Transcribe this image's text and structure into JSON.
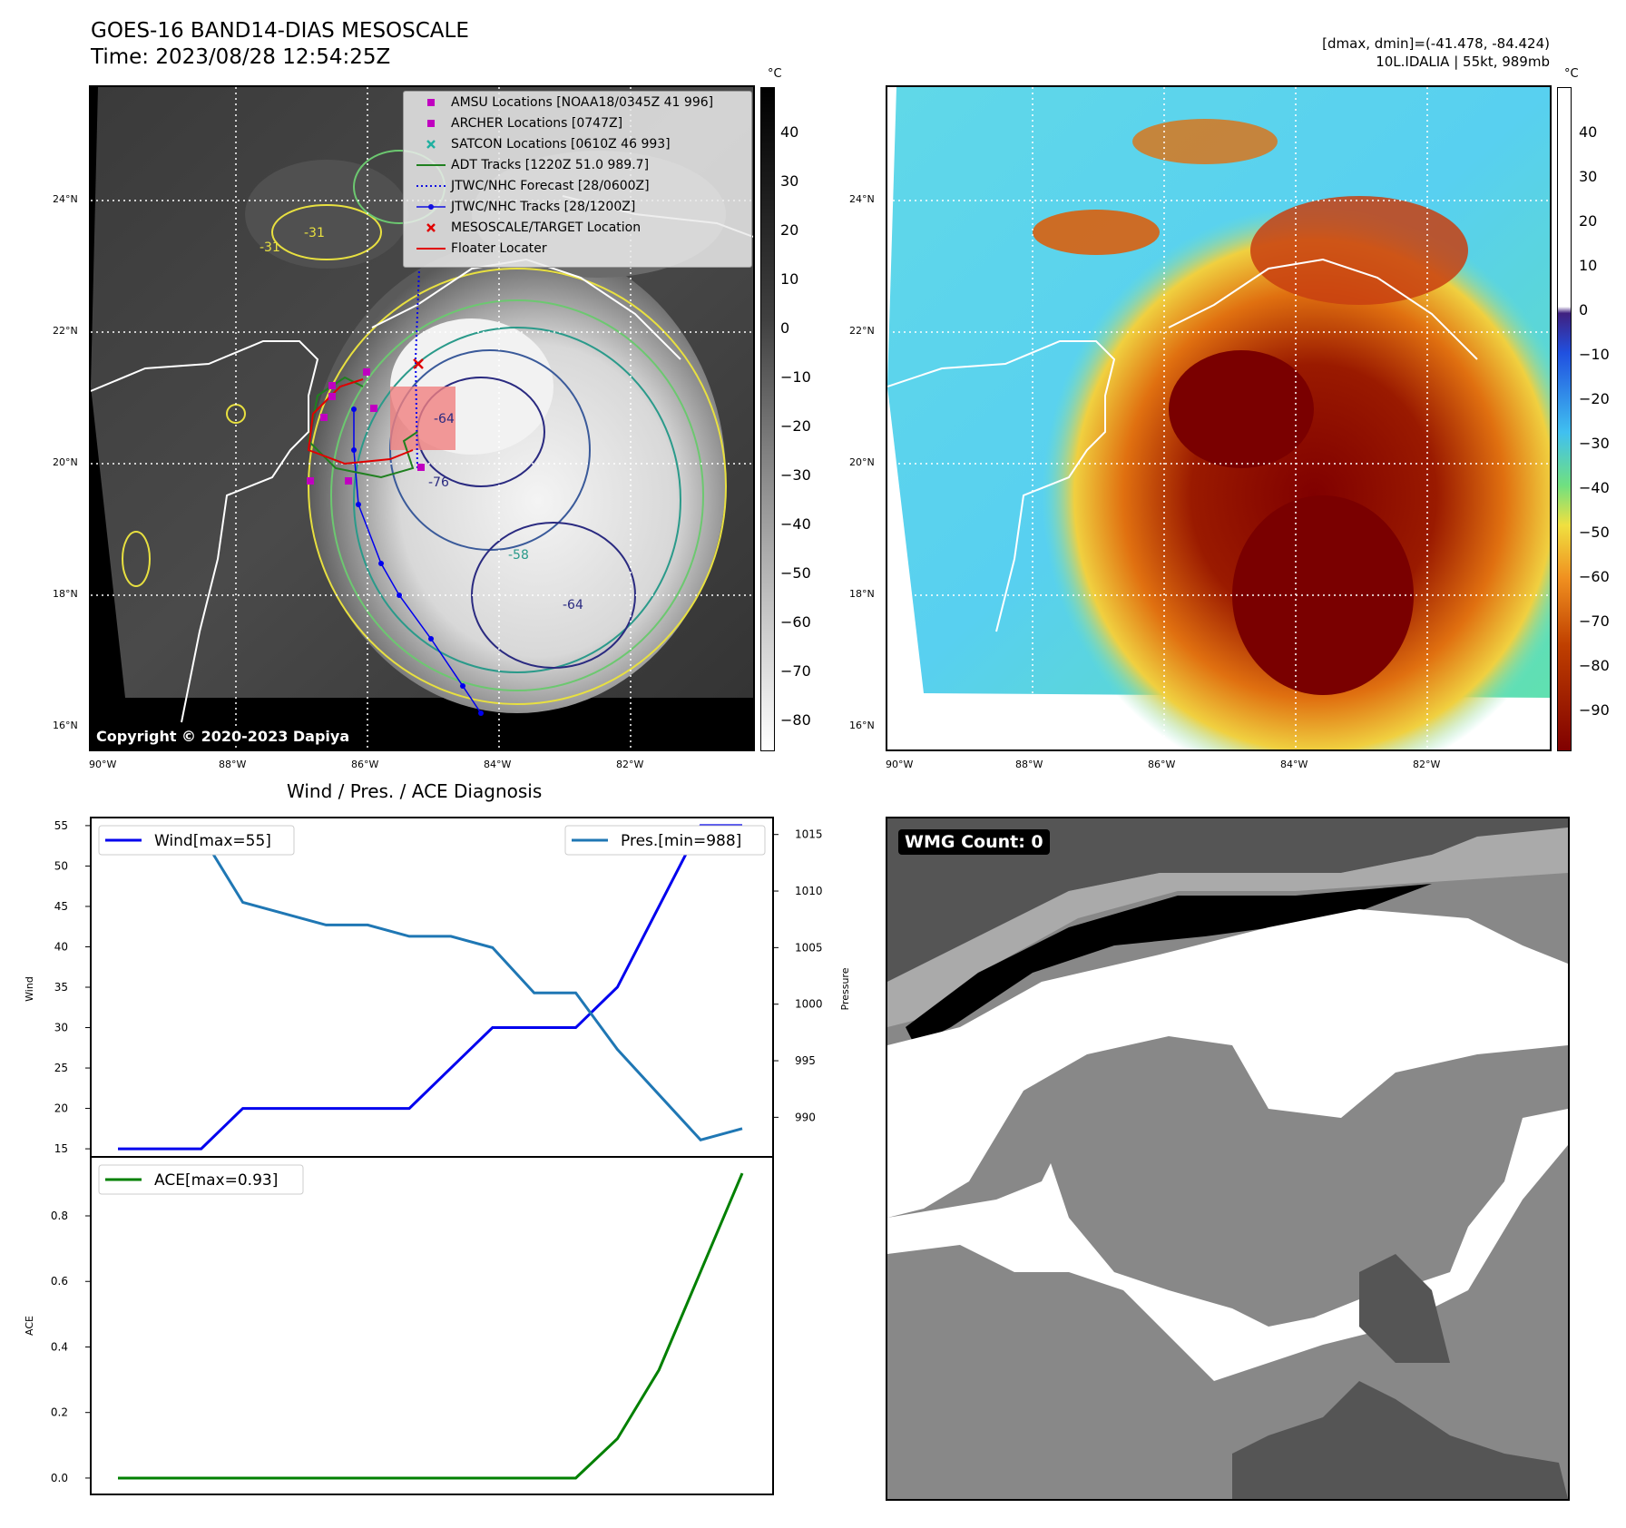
{
  "header": {
    "title_line1": "GOES-16 BAND14-DIAS MESOSCALE",
    "title_line2": "Time: 2023/08/28 12:54:25Z",
    "right_line1": "[dmax, dmin]=(-41.478, -84.424)",
    "right_line2": "10L.IDALIA | 55kt, 989mb"
  },
  "map_axes": {
    "lon_labels": [
      "90°W",
      "88°W",
      "86°W",
      "84°W",
      "82°W"
    ],
    "lat_labels": [
      "24°N",
      "22°N",
      "20°N",
      "18°N",
      "16°N"
    ]
  },
  "colorbar_left": {
    "unit": "°C",
    "ticks": [
      "40",
      "30",
      "20",
      "10",
      "0",
      "−10",
      "−20",
      "−30",
      "−40",
      "−50",
      "−60",
      "−70",
      "−80"
    ]
  },
  "colorbar_right": {
    "unit": "°C",
    "ticks": [
      "40",
      "30",
      "20",
      "10",
      "0",
      "−10",
      "−20",
      "−30",
      "−40",
      "−50",
      "−60",
      "−70",
      "−80",
      "−90"
    ]
  },
  "legend": {
    "items": [
      {
        "label": "AMSU Locations [NOAA18/0345Z 41 996]",
        "symbol": "square",
        "color": "#c000c0"
      },
      {
        "label": "ARCHER Locations [0747Z]",
        "symbol": "square",
        "color": "#c000c0"
      },
      {
        "label": "SATCON Locations [0610Z 46 993]",
        "symbol": "x",
        "color": "#20b0a0"
      },
      {
        "label": "ADT Tracks [1220Z 51.0 989.7]",
        "symbol": "line",
        "color": "#208020"
      },
      {
        "label": "JTWC/NHC Forecast [28/0600Z]",
        "symbol": "dotted",
        "color": "#1010e0"
      },
      {
        "label": "JTWC/NHC Tracks [28/1200Z]",
        "symbol": "line-dot",
        "color": "#1010e0"
      },
      {
        "label": "MESOSCALE/TARGET Location",
        "symbol": "x",
        "color": "#e00000"
      },
      {
        "label": "Floater Locater",
        "symbol": "line",
        "color": "#e00000"
      }
    ]
  },
  "contour_labels": [
    "-31",
    "-31",
    "-64",
    "-76",
    "-58",
    "-64"
  ],
  "copyright": "Copyright © 2020-2023 Dapiya",
  "diagnosis": {
    "title": "Wind / Pres. / ACE Diagnosis",
    "wind_legend": "Wind[max=55]",
    "pres_legend": "Pres.[min=988]",
    "ace_legend": "ACE[max=0.93]",
    "wind_axis_label": "Wind",
    "pres_axis_label": "Pressure",
    "ace_axis_label": "ACE"
  },
  "wmg": {
    "label": "WMG Count: 0"
  },
  "chart_data": [
    {
      "type": "line",
      "title": "Wind / Pres. / ACE Diagnosis",
      "x": [
        0,
        1,
        2,
        3,
        4,
        5,
        6,
        7,
        8,
        9,
        10,
        11,
        12,
        13,
        14,
        15
      ],
      "series": [
        {
          "name": "Wind[max=55]",
          "color": "#0000ee",
          "axis": "left",
          "values": [
            15,
            15,
            15,
            20,
            20,
            20,
            20,
            20,
            25,
            30,
            30,
            30,
            35,
            45,
            55,
            55
          ]
        },
        {
          "name": "Pres.[min=988]",
          "color": "#1f77b4",
          "axis": "right",
          "values": [
            1015,
            1015,
            1015,
            1009,
            1008,
            1007,
            1007,
            1006,
            1006,
            1005,
            1001,
            1001,
            996,
            992,
            988,
            989
          ]
        }
      ],
      "ylabel": "Wind",
      "ylim": [
        14,
        56
      ],
      "y2label": "Pressure",
      "y2lim": [
        986.5,
        1016.5
      ],
      "yticks": [
        15,
        20,
        25,
        30,
        35,
        40,
        45,
        50,
        55
      ],
      "y2ticks": [
        990,
        995,
        1000,
        1005,
        1010,
        1015
      ]
    },
    {
      "type": "line",
      "x": [
        0,
        1,
        2,
        3,
        4,
        5,
        6,
        7,
        8,
        9,
        10,
        11,
        12,
        13,
        14,
        15
      ],
      "series": [
        {
          "name": "ACE[max=0.93]",
          "color": "#008000",
          "values": [
            0,
            0,
            0,
            0,
            0,
            0,
            0,
            0,
            0,
            0,
            0,
            0,
            0.12,
            0.33,
            0.63,
            0.93
          ]
        }
      ],
      "ylabel": "ACE",
      "ylim": [
        -0.05,
        0.98
      ],
      "yticks": [
        0.0,
        0.2,
        0.4,
        0.6,
        0.8
      ],
      "ytick_labels": [
        "0.0",
        "0.2",
        "0.4",
        "0.6",
        "0.8"
      ]
    }
  ]
}
